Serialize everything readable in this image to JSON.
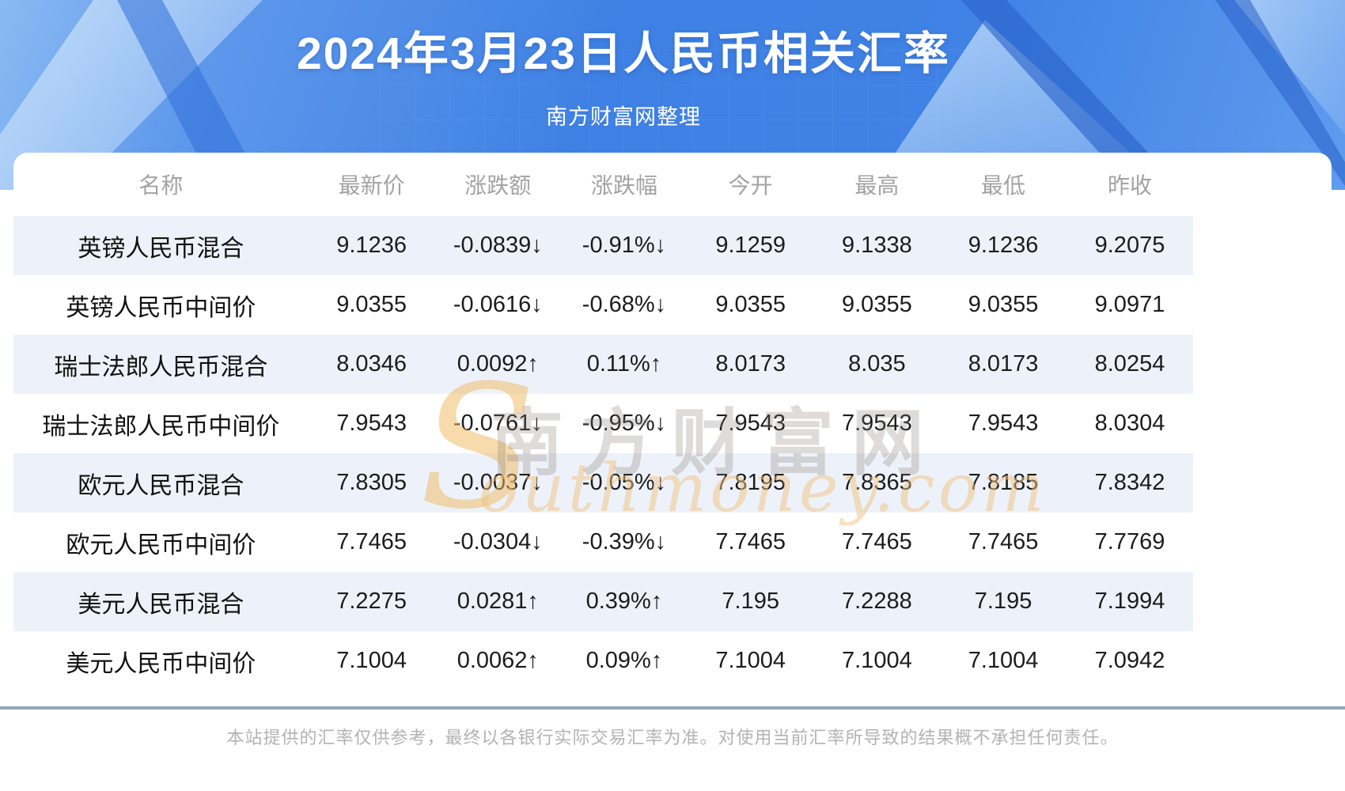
{
  "banner": {
    "title": "2024年3月23日人民币相关汇率",
    "subtitle": "南方财富网整理"
  },
  "table": {
    "columns": [
      "名称",
      "最新价",
      "涨跌额",
      "涨跌幅",
      "今开",
      "最高",
      "最低",
      "昨收"
    ],
    "rows": [
      {
        "name": "英镑人民币混合",
        "latest": "9.1236",
        "change": "-0.0839",
        "change_pct": "-0.91%",
        "open": "9.1259",
        "high": "9.1338",
        "low": "9.1236",
        "prev_close": "9.2075",
        "trend": "down"
      },
      {
        "name": "英镑人民币中间价",
        "latest": "9.0355",
        "change": "-0.0616",
        "change_pct": "-0.68%",
        "open": "9.0355",
        "high": "9.0355",
        "low": "9.0355",
        "prev_close": "9.0971",
        "trend": "down"
      },
      {
        "name": "瑞士法郎人民币混合",
        "latest": "8.0346",
        "change": "0.0092",
        "change_pct": "0.11%",
        "open": "8.0173",
        "high": "8.035",
        "low": "8.0173",
        "prev_close": "8.0254",
        "trend": "up"
      },
      {
        "name": "瑞士法郎人民币中间价",
        "latest": "7.9543",
        "change": "-0.0761",
        "change_pct": "-0.95%",
        "open": "7.9543",
        "high": "7.9543",
        "low": "7.9543",
        "prev_close": "8.0304",
        "trend": "down"
      },
      {
        "name": "欧元人民币混合",
        "latest": "7.8305",
        "change": "-0.0037",
        "change_pct": "-0.05%",
        "open": "7.8195",
        "high": "7.8365",
        "low": "7.8185",
        "prev_close": "7.8342",
        "trend": "down"
      },
      {
        "name": "欧元人民币中间价",
        "latest": "7.7465",
        "change": "-0.0304",
        "change_pct": "-0.39%",
        "open": "7.7465",
        "high": "7.7465",
        "low": "7.7465",
        "prev_close": "7.7769",
        "trend": "down"
      },
      {
        "name": "美元人民币混合",
        "latest": "7.2275",
        "change": "0.0281",
        "change_pct": "0.39%",
        "open": "7.195",
        "high": "7.2288",
        "low": "7.195",
        "prev_close": "7.1994",
        "trend": "up"
      },
      {
        "name": "美元人民币中间价",
        "latest": "7.1004",
        "change": "0.0062",
        "change_pct": "0.09%",
        "open": "7.1004",
        "high": "7.1004",
        "low": "7.1004",
        "prev_close": "7.0942",
        "trend": "up"
      }
    ],
    "arrows": {
      "up": "↑",
      "down": "↓"
    }
  },
  "watermark": {
    "s_glyph": "S",
    "cn_text": "南方财富网",
    "en_text": "outhmoney.com"
  },
  "footer": {
    "disclaimer": "本站提供的汇率仅供参考，最终以各银行实际交易汇率为准。对使用当前汇率所导致的结果概不承担任何责任。"
  },
  "colors": {
    "up_red": "#fa0000",
    "down_green": "#138713",
    "banner_blue": "#3e80e3",
    "stripe_blue": "#edf2fa",
    "divider_gray_blue": "#90a7bb"
  }
}
